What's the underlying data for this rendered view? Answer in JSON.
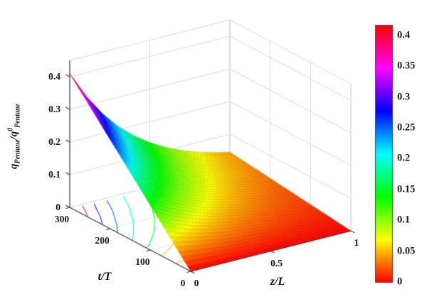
{
  "chart_data": {
    "type": "surface",
    "title": "",
    "colormap": "hsv",
    "x_axis": {
      "label": "z/L",
      "ticks": [
        0,
        0.5,
        1
      ],
      "range": [
        0,
        1
      ]
    },
    "y_axis": {
      "label": "t/T",
      "ticks": [
        300,
        200,
        100,
        0
      ],
      "range": [
        0,
        300
      ]
    },
    "v_axis": {
      "label_parts": {
        "base": "q",
        "sub1": "Pentane",
        "mid": "/q",
        "sup": "0",
        "sub2": "Pentane"
      },
      "ticks": [
        0,
        0.1,
        0.2,
        0.3,
        0.4
      ],
      "range": [
        0,
        0.45
      ]
    },
    "colorbar": {
      "ticks": [
        0,
        0.05,
        0.1,
        0.15,
        0.2,
        0.25,
        0.3,
        0.35,
        0.4
      ],
      "range": [
        0,
        0.417
      ]
    },
    "contour_levels": [
      0.05,
      0.1,
      0.15,
      0.2,
      0.25,
      0.3,
      0.35,
      0.4
    ],
    "surface": {
      "t_values": [
        0,
        50,
        100,
        150,
        200,
        250,
        300
      ],
      "z_values": [
        0,
        0.1,
        0.2,
        0.3,
        0.4,
        0.5,
        0.6,
        0.7,
        0.8,
        0.9,
        1.0
      ],
      "values": [
        [
          0.0,
          0.0,
          0.0,
          0.0,
          0.0,
          0.0,
          0.0,
          0.0,
          0.0,
          0.0,
          0.0
        ],
        [
          0.0683,
          0.0548,
          0.044,
          0.0353,
          0.0283,
          0.0227,
          0.0182,
          0.0146,
          0.0117,
          0.0094,
          0.0076
        ],
        [
          0.1367,
          0.1097,
          0.088,
          0.0706,
          0.0567,
          0.0455,
          0.0365,
          0.0293,
          0.0235,
          0.0189,
          0.0151
        ],
        [
          0.205,
          0.1645,
          0.132,
          0.106,
          0.085,
          0.0682,
          0.0548,
          0.044,
          0.0353,
          0.0283,
          0.0227
        ],
        [
          0.2733,
          0.2194,
          0.176,
          0.1413,
          0.1134,
          0.091,
          0.073,
          0.0586,
          0.047,
          0.0377,
          0.0303
        ],
        [
          0.3417,
          0.2742,
          0.22,
          0.1766,
          0.1417,
          0.1137,
          0.0912,
          0.0733,
          0.0588,
          0.0472,
          0.0379
        ],
        [
          0.41,
          0.329,
          0.264,
          0.2119,
          0.1701,
          0.1365,
          0.1095,
          0.0879,
          0.0705,
          0.0566,
          0.0454
        ]
      ]
    }
  }
}
